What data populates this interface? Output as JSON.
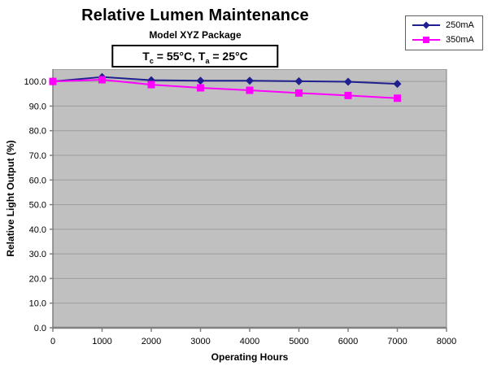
{
  "chart_data": {
    "type": "line",
    "title": "Relative Lumen Maintenance",
    "subtitle": "Model XYZ Package",
    "annotation_text": "Tc = 55°C, Ta = 25°C",
    "annotation_parts": {
      "p1": "T",
      "s1": "c",
      "p2": " = 55°C, T",
      "s2": "a",
      "p3": " = 25°C"
    },
    "xlabel": "Operating Hours",
    "ylabel": "Relative Light Output (%)",
    "x": [
      0,
      1000,
      2000,
      3000,
      4000,
      5000,
      6000,
      7000
    ],
    "series": [
      {
        "name": "250mA",
        "color": "#1f1f8f",
        "marker": "diamond",
        "values": [
          100.0,
          101.8,
          100.5,
          100.3,
          100.3,
          100.1,
          99.9,
          99.0
        ]
      },
      {
        "name": "350mA",
        "color": "#ff00ff",
        "marker": "square",
        "values": [
          100.0,
          100.7,
          98.7,
          97.4,
          96.4,
          95.3,
          94.3,
          93.2
        ]
      }
    ],
    "xlim": [
      0,
      8000
    ],
    "ylim": [
      0,
      105
    ],
    "x_ticks": [
      0,
      1000,
      2000,
      3000,
      4000,
      5000,
      6000,
      7000,
      8000
    ],
    "y_ticks": [
      "0.0",
      "10.0",
      "20.0",
      "30.0",
      "40.0",
      "50.0",
      "60.0",
      "70.0",
      "80.0",
      "90.0",
      "100.0"
    ],
    "grid": true,
    "legend_position": "top-right",
    "colors": {
      "plot_bg": "#c0c0c0",
      "grid": "#9c9c9c",
      "plot_border": "#808080",
      "axis": "#808080",
      "tick_text": "#000000"
    }
  }
}
